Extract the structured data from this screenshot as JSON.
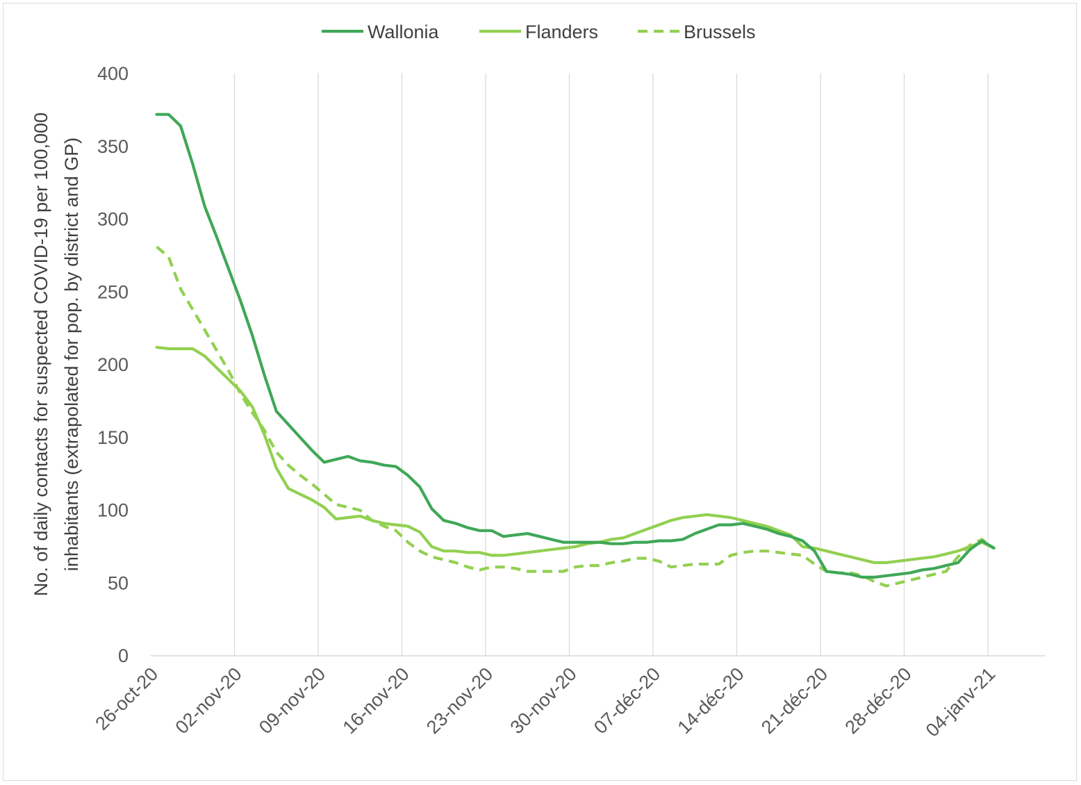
{
  "chart_data": {
    "type": "line",
    "title": "",
    "ylabel_lines": [
      "No. of daily contacts for suspected  COVID-19 per 100,000",
      "inhabitants (extrapolated for pop. by district and GP)"
    ],
    "xlabel": "",
    "ylim": [
      0,
      400
    ],
    "yticks": [
      "0",
      "50",
      "100",
      "150",
      "200",
      "250",
      "300",
      "350",
      "400"
    ],
    "x_range_days": [
      0,
      77
    ],
    "xticks": [
      {
        "day": 0,
        "label": "26-oct-20"
      },
      {
        "day": 7,
        "label": "02-nov-20"
      },
      {
        "day": 14,
        "label": "09-nov-20"
      },
      {
        "day": 21,
        "label": "16-nov-20"
      },
      {
        "day": 28,
        "label": "23-nov-20"
      },
      {
        "day": 35,
        "label": "30-nov-20"
      },
      {
        "day": 42,
        "label": "07-déc-20"
      },
      {
        "day": 49,
        "label": "14-déc-20"
      },
      {
        "day": 56,
        "label": "21-déc-20"
      },
      {
        "day": 63,
        "label": "28-déc-20"
      },
      {
        "day": 70,
        "label": "04-janv-21"
      }
    ],
    "grid": "vertical",
    "legend_position": "top",
    "series": [
      {
        "name": "Wallonia",
        "color": "#3fa757",
        "dash": "solid",
        "points": [
          [
            0.5,
            372
          ],
          [
            1.5,
            372
          ],
          [
            2.5,
            364
          ],
          [
            3.5,
            338
          ],
          [
            4.5,
            309
          ],
          [
            5.5,
            288
          ],
          [
            6.5,
            266
          ],
          [
            7.5,
            244
          ],
          [
            8.5,
            220
          ],
          [
            9.5,
            193
          ],
          [
            10.5,
            168
          ],
          [
            11.5,
            159
          ],
          [
            12.5,
            150
          ],
          [
            13.5,
            141
          ],
          [
            14.5,
            133
          ],
          [
            15.5,
            135
          ],
          [
            16.5,
            137
          ],
          [
            17.5,
            134
          ],
          [
            18.5,
            133
          ],
          [
            19.5,
            131
          ],
          [
            20.5,
            130
          ],
          [
            21.5,
            124
          ],
          [
            22.5,
            116
          ],
          [
            23.5,
            101
          ],
          [
            24.5,
            93
          ],
          [
            25.5,
            91
          ],
          [
            26.5,
            88
          ],
          [
            27.5,
            86
          ],
          [
            28.5,
            86
          ],
          [
            29.5,
            82
          ],
          [
            30.5,
            83
          ],
          [
            31.5,
            84
          ],
          [
            32.5,
            82
          ],
          [
            33.5,
            80
          ],
          [
            34.5,
            78
          ],
          [
            35.5,
            78
          ],
          [
            36.5,
            78
          ],
          [
            37.5,
            78
          ],
          [
            38.5,
            77
          ],
          [
            39.5,
            77
          ],
          [
            40.5,
            78
          ],
          [
            41.5,
            78
          ],
          [
            42.5,
            79
          ],
          [
            43.5,
            79
          ],
          [
            44.5,
            80
          ],
          [
            45.5,
            84
          ],
          [
            46.5,
            87
          ],
          [
            47.5,
            90
          ],
          [
            48.5,
            90
          ],
          [
            49.5,
            91
          ],
          [
            50.5,
            89
          ],
          [
            51.5,
            87
          ],
          [
            52.5,
            84
          ],
          [
            53.5,
            82
          ],
          [
            54.5,
            79
          ],
          [
            55.5,
            72
          ],
          [
            56.5,
            58
          ],
          [
            57.5,
            57
          ],
          [
            58.5,
            56
          ],
          [
            59.5,
            54
          ],
          [
            60.5,
            54
          ],
          [
            61.5,
            55
          ],
          [
            62.5,
            56
          ],
          [
            63.5,
            57
          ],
          [
            64.5,
            59
          ],
          [
            65.5,
            60
          ],
          [
            66.5,
            62
          ],
          [
            67.5,
            64
          ],
          [
            68.5,
            73
          ],
          [
            69.5,
            79
          ],
          [
            70.5,
            74
          ]
        ]
      },
      {
        "name": "Flanders",
        "color": "#92d050",
        "dash": "solid",
        "points": [
          [
            0.5,
            212
          ],
          [
            1.5,
            211
          ],
          [
            2.5,
            211
          ],
          [
            3.5,
            211
          ],
          [
            4.5,
            206
          ],
          [
            5.5,
            198
          ],
          [
            6.5,
            190
          ],
          [
            7.5,
            182
          ],
          [
            8.5,
            171
          ],
          [
            9.5,
            152
          ],
          [
            10.5,
            129
          ],
          [
            11.5,
            115
          ],
          [
            12.5,
            111
          ],
          [
            13.5,
            107
          ],
          [
            14.5,
            102
          ],
          [
            15.5,
            94
          ],
          [
            16.5,
            95
          ],
          [
            17.5,
            96
          ],
          [
            18.5,
            93
          ],
          [
            19.5,
            91
          ],
          [
            20.5,
            90
          ],
          [
            21.5,
            89
          ],
          [
            22.5,
            85
          ],
          [
            23.5,
            75
          ],
          [
            24.5,
            72
          ],
          [
            25.5,
            72
          ],
          [
            26.5,
            71
          ],
          [
            27.5,
            71
          ],
          [
            28.5,
            69
          ],
          [
            29.5,
            69
          ],
          [
            30.5,
            70
          ],
          [
            31.5,
            71
          ],
          [
            32.5,
            72
          ],
          [
            33.5,
            73
          ],
          [
            34.5,
            74
          ],
          [
            35.5,
            75
          ],
          [
            36.5,
            77
          ],
          [
            37.5,
            78
          ],
          [
            38.5,
            80
          ],
          [
            39.5,
            81
          ],
          [
            40.5,
            84
          ],
          [
            41.5,
            87
          ],
          [
            42.5,
            90
          ],
          [
            43.5,
            93
          ],
          [
            44.5,
            95
          ],
          [
            45.5,
            96
          ],
          [
            46.5,
            97
          ],
          [
            47.5,
            96
          ],
          [
            48.5,
            95
          ],
          [
            49.5,
            93
          ],
          [
            50.5,
            91
          ],
          [
            51.5,
            89
          ],
          [
            52.5,
            86
          ],
          [
            53.5,
            83
          ],
          [
            54.5,
            75
          ],
          [
            55.5,
            74
          ],
          [
            56.5,
            72
          ],
          [
            57.5,
            70
          ],
          [
            58.5,
            68
          ],
          [
            59.5,
            66
          ],
          [
            60.5,
            64
          ],
          [
            61.5,
            64
          ],
          [
            62.5,
            65
          ],
          [
            63.5,
            66
          ],
          [
            64.5,
            67
          ],
          [
            65.5,
            68
          ],
          [
            66.5,
            70
          ],
          [
            67.5,
            72
          ],
          [
            68.5,
            75
          ],
          [
            69.5,
            78
          ],
          [
            70.5,
            74
          ]
        ]
      },
      {
        "name": "Brussels",
        "color": "#92d050",
        "dash": "dashed",
        "points": [
          [
            0.5,
            281
          ],
          [
            1.5,
            274
          ],
          [
            2.5,
            252
          ],
          [
            3.5,
            238
          ],
          [
            4.5,
            224
          ],
          [
            5.5,
            210
          ],
          [
            6.5,
            196
          ],
          [
            7.5,
            180
          ],
          [
            8.5,
            167
          ],
          [
            9.5,
            155
          ],
          [
            10.5,
            140
          ],
          [
            11.5,
            131
          ],
          [
            12.5,
            124
          ],
          [
            13.5,
            118
          ],
          [
            14.5,
            111
          ],
          [
            15.5,
            104
          ],
          [
            16.5,
            102
          ],
          [
            17.5,
            100
          ],
          [
            18.5,
            93
          ],
          [
            19.5,
            89
          ],
          [
            20.5,
            86
          ],
          [
            21.5,
            78
          ],
          [
            22.5,
            72
          ],
          [
            23.5,
            68
          ],
          [
            24.5,
            66
          ],
          [
            25.5,
            64
          ],
          [
            26.5,
            61
          ],
          [
            27.5,
            59
          ],
          [
            28.5,
            61
          ],
          [
            29.5,
            61
          ],
          [
            30.5,
            60
          ],
          [
            31.5,
            58
          ],
          [
            32.5,
            58
          ],
          [
            33.5,
            58
          ],
          [
            34.5,
            58
          ],
          [
            35.5,
            61
          ],
          [
            36.5,
            62
          ],
          [
            37.5,
            62
          ],
          [
            38.5,
            64
          ],
          [
            39.5,
            65
          ],
          [
            40.5,
            67
          ],
          [
            41.5,
            67
          ],
          [
            42.5,
            65
          ],
          [
            43.5,
            61
          ],
          [
            44.5,
            62
          ],
          [
            45.5,
            63
          ],
          [
            46.5,
            63
          ],
          [
            47.5,
            63
          ],
          [
            48.5,
            69
          ],
          [
            49.5,
            71
          ],
          [
            50.5,
            72
          ],
          [
            51.5,
            72
          ],
          [
            52.5,
            71
          ],
          [
            53.5,
            70
          ],
          [
            54.5,
            69
          ],
          [
            55.5,
            63
          ],
          [
            56.5,
            58
          ],
          [
            57.5,
            57
          ],
          [
            58.5,
            57
          ],
          [
            59.5,
            55
          ],
          [
            60.5,
            51
          ],
          [
            61.5,
            48
          ],
          [
            62.5,
            50
          ],
          [
            63.5,
            52
          ],
          [
            64.5,
            54
          ],
          [
            65.5,
            56
          ],
          [
            66.5,
            58
          ],
          [
            67.5,
            68
          ],
          [
            68.5,
            76
          ],
          [
            69.5,
            80
          ],
          [
            70.5,
            74
          ]
        ]
      }
    ]
  }
}
